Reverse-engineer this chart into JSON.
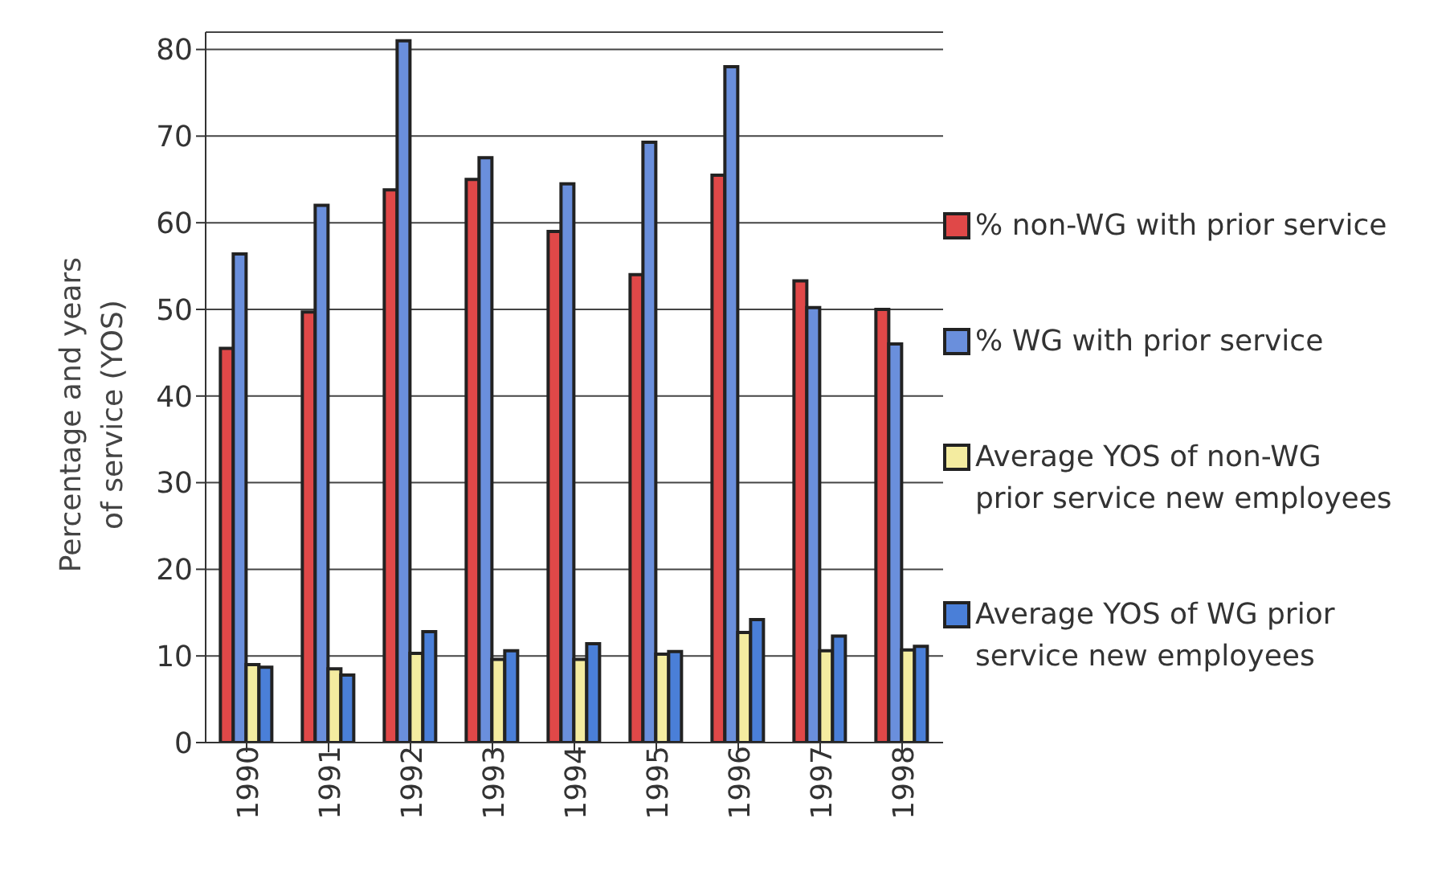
{
  "chart_data": {
    "type": "bar",
    "ylabel": "Percentage and years of service (YOS)",
    "categories": [
      "1990",
      "1991",
      "1992",
      "1993",
      "1994",
      "1995",
      "1996",
      "1997",
      "1998"
    ],
    "series": [
      {
        "name": "% non-WG with prior service",
        "color": "#e04848",
        "values": [
          45.5,
          49.7,
          63.8,
          65,
          59,
          54,
          65.5,
          53.3,
          50
        ]
      },
      {
        "name": "% WG with prior service",
        "color": "#6a8fdc",
        "values": [
          56.4,
          62,
          81,
          67.5,
          64.5,
          69.3,
          78,
          50.2,
          46
        ]
      },
      {
        "name": "Average YOS of non-WG prior service new employees",
        "color": "#f4eca0",
        "values": [
          9,
          8.5,
          10.3,
          9.6,
          9.6,
          10.2,
          12.7,
          10.6,
          10.7
        ]
      },
      {
        "name": "Average YOS of WG prior service new employees",
        "color": "#4a7fd8",
        "values": [
          8.7,
          7.8,
          12.8,
          10.6,
          11.4,
          10.5,
          14.2,
          12.3,
          11.1
        ]
      }
    ],
    "ylim": [
      0,
      82
    ],
    "yticks": [
      0,
      10,
      20,
      30,
      40,
      50,
      60,
      70,
      80
    ],
    "grid": "y",
    "legend": "right"
  }
}
